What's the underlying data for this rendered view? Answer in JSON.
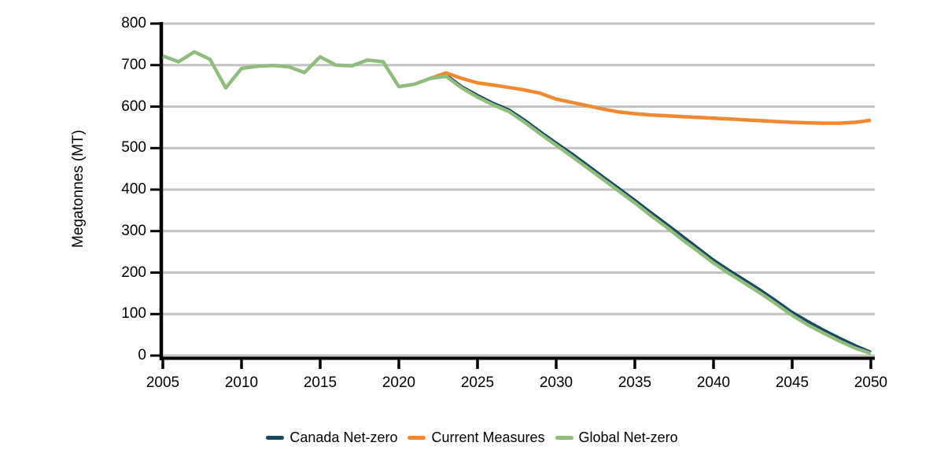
{
  "chart_data": {
    "type": "line",
    "title": "",
    "xlabel": "",
    "ylabel": "Megatonnes (MT)",
    "xlim": [
      2005,
      2050
    ],
    "ylim": [
      0,
      800
    ],
    "x_ticks": [
      2005,
      2010,
      2015,
      2020,
      2025,
      2030,
      2035,
      2040,
      2045,
      2050
    ],
    "y_ticks": [
      0,
      100,
      200,
      300,
      400,
      500,
      600,
      700,
      800
    ],
    "grid": "horizontal",
    "legend_position": "bottom-center",
    "series": [
      {
        "name": "Canada Net-zero",
        "color": "#17485F",
        "line_width": 4,
        "x": [
          2023,
          2024,
          2025,
          2026,
          2027,
          2028,
          2029,
          2030,
          2031,
          2032,
          2033,
          2034,
          2035,
          2036,
          2037,
          2038,
          2039,
          2040,
          2041,
          2042,
          2043,
          2044,
          2045,
          2046,
          2047,
          2048,
          2049,
          2050
        ],
        "values": [
          676,
          648,
          627,
          608,
          592,
          567,
          539,
          512,
          486,
          458,
          430,
          402,
          374,
          345,
          317,
          288,
          259,
          230,
          205,
          181,
          157,
          131,
          104,
          82,
          61,
          42,
          24,
          8
        ]
      },
      {
        "name": "Current Measures",
        "color": "#EF8A33",
        "line_width": 4.5,
        "x": [
          2022,
          2023,
          2024,
          2025,
          2026,
          2027,
          2028,
          2029,
          2030,
          2031,
          2032,
          2033,
          2034,
          2035,
          2036,
          2037,
          2038,
          2039,
          2040,
          2041,
          2042,
          2043,
          2044,
          2045,
          2046,
          2047,
          2048,
          2049,
          2050
        ],
        "values": [
          668,
          681,
          668,
          657,
          652,
          646,
          640,
          632,
          618,
          610,
          602,
          594,
          587,
          583,
          580,
          578,
          576,
          574,
          572,
          570,
          568,
          566,
          564,
          562,
          561,
          560,
          560,
          562,
          567
        ]
      },
      {
        "name": "Global Net-zero",
        "color": "#90BD7E",
        "line_width": 4.5,
        "x": [
          2005,
          2006,
          2007,
          2008,
          2009,
          2010,
          2011,
          2012,
          2013,
          2014,
          2015,
          2016,
          2017,
          2018,
          2019,
          2020,
          2021,
          2022,
          2023,
          2024,
          2025,
          2026,
          2027,
          2028,
          2029,
          2030,
          2031,
          2032,
          2033,
          2034,
          2035,
          2036,
          2037,
          2038,
          2039,
          2040,
          2041,
          2042,
          2043,
          2044,
          2045,
          2046,
          2047,
          2048,
          2049,
          2050
        ],
        "values": [
          722,
          708,
          732,
          714,
          645,
          692,
          697,
          699,
          696,
          682,
          720,
          700,
          698,
          712,
          708,
          648,
          654,
          668,
          673,
          645,
          623,
          604,
          588,
          562,
          534,
          507,
          480,
          452,
          424,
          396,
          368,
          338,
          310,
          280,
          252,
          223,
          198,
          174,
          150,
          124,
          97,
          74,
          54,
          35,
          18,
          5
        ]
      }
    ]
  },
  "colors": {
    "gridline": "#C3C3C3",
    "axis": "#000000",
    "tick_text": "#000000",
    "background": "#FFFFFF"
  }
}
